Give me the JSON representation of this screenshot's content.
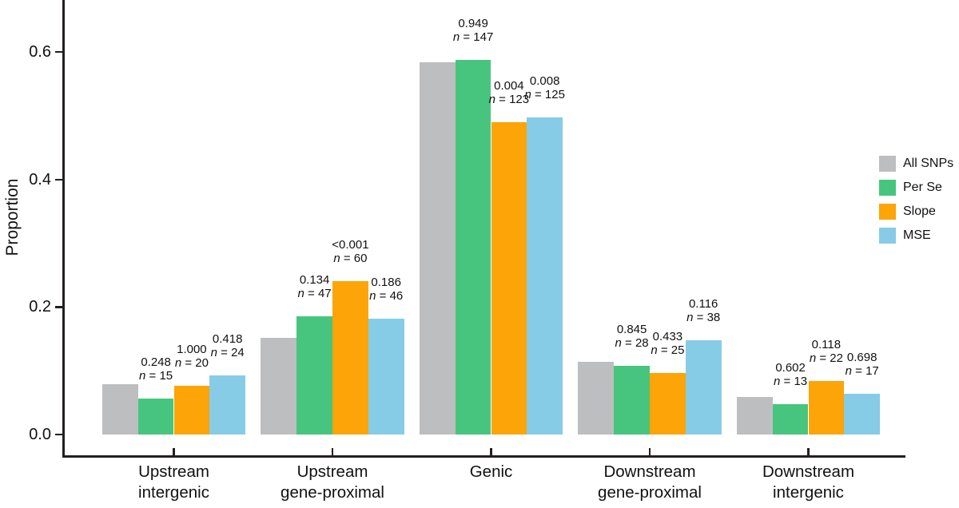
{
  "chart_data": {
    "type": "bar",
    "title": "",
    "ylabel": "Proportion",
    "xlabel": "",
    "ylim": [
      0,
      0.69
    ],
    "grid": false,
    "legend_position": "right",
    "yticks": [
      {
        "value": 0.0,
        "label": "0.0"
      },
      {
        "value": 0.2,
        "label": "0.2"
      },
      {
        "value": 0.4,
        "label": "0.4"
      },
      {
        "value": 0.6,
        "label": "0.6"
      }
    ],
    "categories": [
      "Upstream intergenic",
      "Upstream gene-proximal",
      "Genic",
      "Downstream gene-proximal",
      "Downstream intergenic"
    ],
    "category_lines": [
      [
        "Upstream",
        "intergenic"
      ],
      [
        "Upstream",
        "gene-proximal"
      ],
      [
        "Genic"
      ],
      [
        "Downstream",
        "gene-proximal"
      ],
      [
        "Downstream",
        "intergenic"
      ]
    ],
    "series": [
      {
        "name": "All SNPs",
        "color": "#bdbebf",
        "values": [
          0.079,
          0.152,
          0.584,
          0.114,
          0.059
        ]
      },
      {
        "name": "Per Se",
        "color": "#47c57f",
        "values": [
          0.057,
          0.185,
          0.588,
          0.108,
          0.048
        ]
      },
      {
        "name": "Slope",
        "color": "#fca408",
        "values": [
          0.077,
          0.24,
          0.49,
          0.096,
          0.084
        ]
      },
      {
        "name": "MSE",
        "color": "#87cce7",
        "values": [
          0.093,
          0.182,
          0.498,
          0.148,
          0.064
        ]
      }
    ],
    "annotations": [
      {
        "category": "Upstream intergenic",
        "items": [
          {
            "series": "Per Se",
            "p": "0.248",
            "n_text": "n = 15"
          },
          {
            "series": "Slope",
            "p": "1.000",
            "n_text": "n = 20"
          },
          {
            "series": "MSE",
            "p": "0.418",
            "n_text": "n = 24"
          }
        ]
      },
      {
        "category": "Upstream gene-proximal",
        "items": [
          {
            "series": "Per Se",
            "p": "0.134",
            "n_text": "n = 47"
          },
          {
            "series": "Slope",
            "p": "<0.001",
            "n_text": "n = 60"
          },
          {
            "series": "MSE",
            "p": "0.186",
            "n_text": "n = 46"
          }
        ]
      },
      {
        "category": "Genic",
        "items": [
          {
            "series": "Per Se",
            "p": "0.949",
            "n_text": "n = 147"
          },
          {
            "series": "Slope",
            "p": "0.004",
            "n_text": "n = 123"
          },
          {
            "series": "MSE",
            "p": "0.008",
            "n_text": "n = 125"
          }
        ]
      },
      {
        "category": "Downstream gene-proximal",
        "items": [
          {
            "series": "Per Se",
            "p": "0.845",
            "n_text": "n = 28"
          },
          {
            "series": "Slope",
            "p": "0.433",
            "n_text": "n = 25"
          },
          {
            "series": "MSE",
            "p": "0.116",
            "n_text": "n = 38"
          }
        ]
      },
      {
        "category": "Downstream intergenic",
        "items": [
          {
            "series": "Per Se",
            "p": "0.602",
            "n_text": "n = 13"
          },
          {
            "series": "Slope",
            "p": "0.118",
            "n_text": "n = 22"
          },
          {
            "series": "MSE",
            "p": "0.698",
            "n_text": "n = 17"
          }
        ]
      }
    ],
    "colors": {
      "axis": "#231f20",
      "text": "#111111",
      "background": "#ffffff"
    }
  }
}
